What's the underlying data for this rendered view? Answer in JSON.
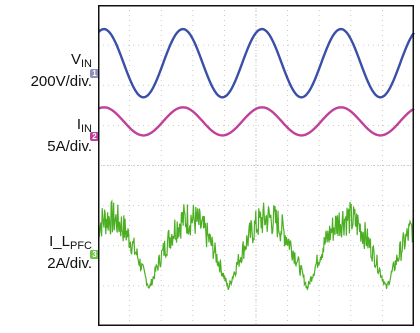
{
  "chart_data": {
    "type": "line",
    "grid": true,
    "trigger_marker": "T",
    "channels": [
      {
        "id": "1",
        "name_main": "V",
        "name_sub": "IN",
        "scale": "200V/div.",
        "color": "#3a4fa8",
        "waveform": "sine",
        "amplitude_div": 0.85,
        "offset_div": 2.55,
        "period_div": 2.5,
        "phase_deg": 0,
        "noise_div": 0
      },
      {
        "id": "2",
        "name_main": "I",
        "name_sub": "IN",
        "scale": "5A/div.",
        "color": "#c0409a",
        "waveform": "sine",
        "amplitude_div": 0.35,
        "offset_div": 1.1,
        "period_div": 2.5,
        "phase_deg": 0,
        "noise_div": 0
      },
      {
        "id": "3",
        "name_main": "I_L",
        "name_sub": "PFC",
        "scale": "2A/div.",
        "color": "#4caf23",
        "waveform": "rectified-sine-ripple",
        "amplitude_div": 1.75,
        "offset_div": -2.1,
        "period_div": 2.5,
        "phase_deg": 0,
        "noise_div": 0.45
      }
    ]
  },
  "markers": {
    "ch1": "1",
    "ch2": "2",
    "ch3": "3"
  },
  "colors": {
    "grid": "#bdbdbd",
    "frame": "#111111"
  }
}
